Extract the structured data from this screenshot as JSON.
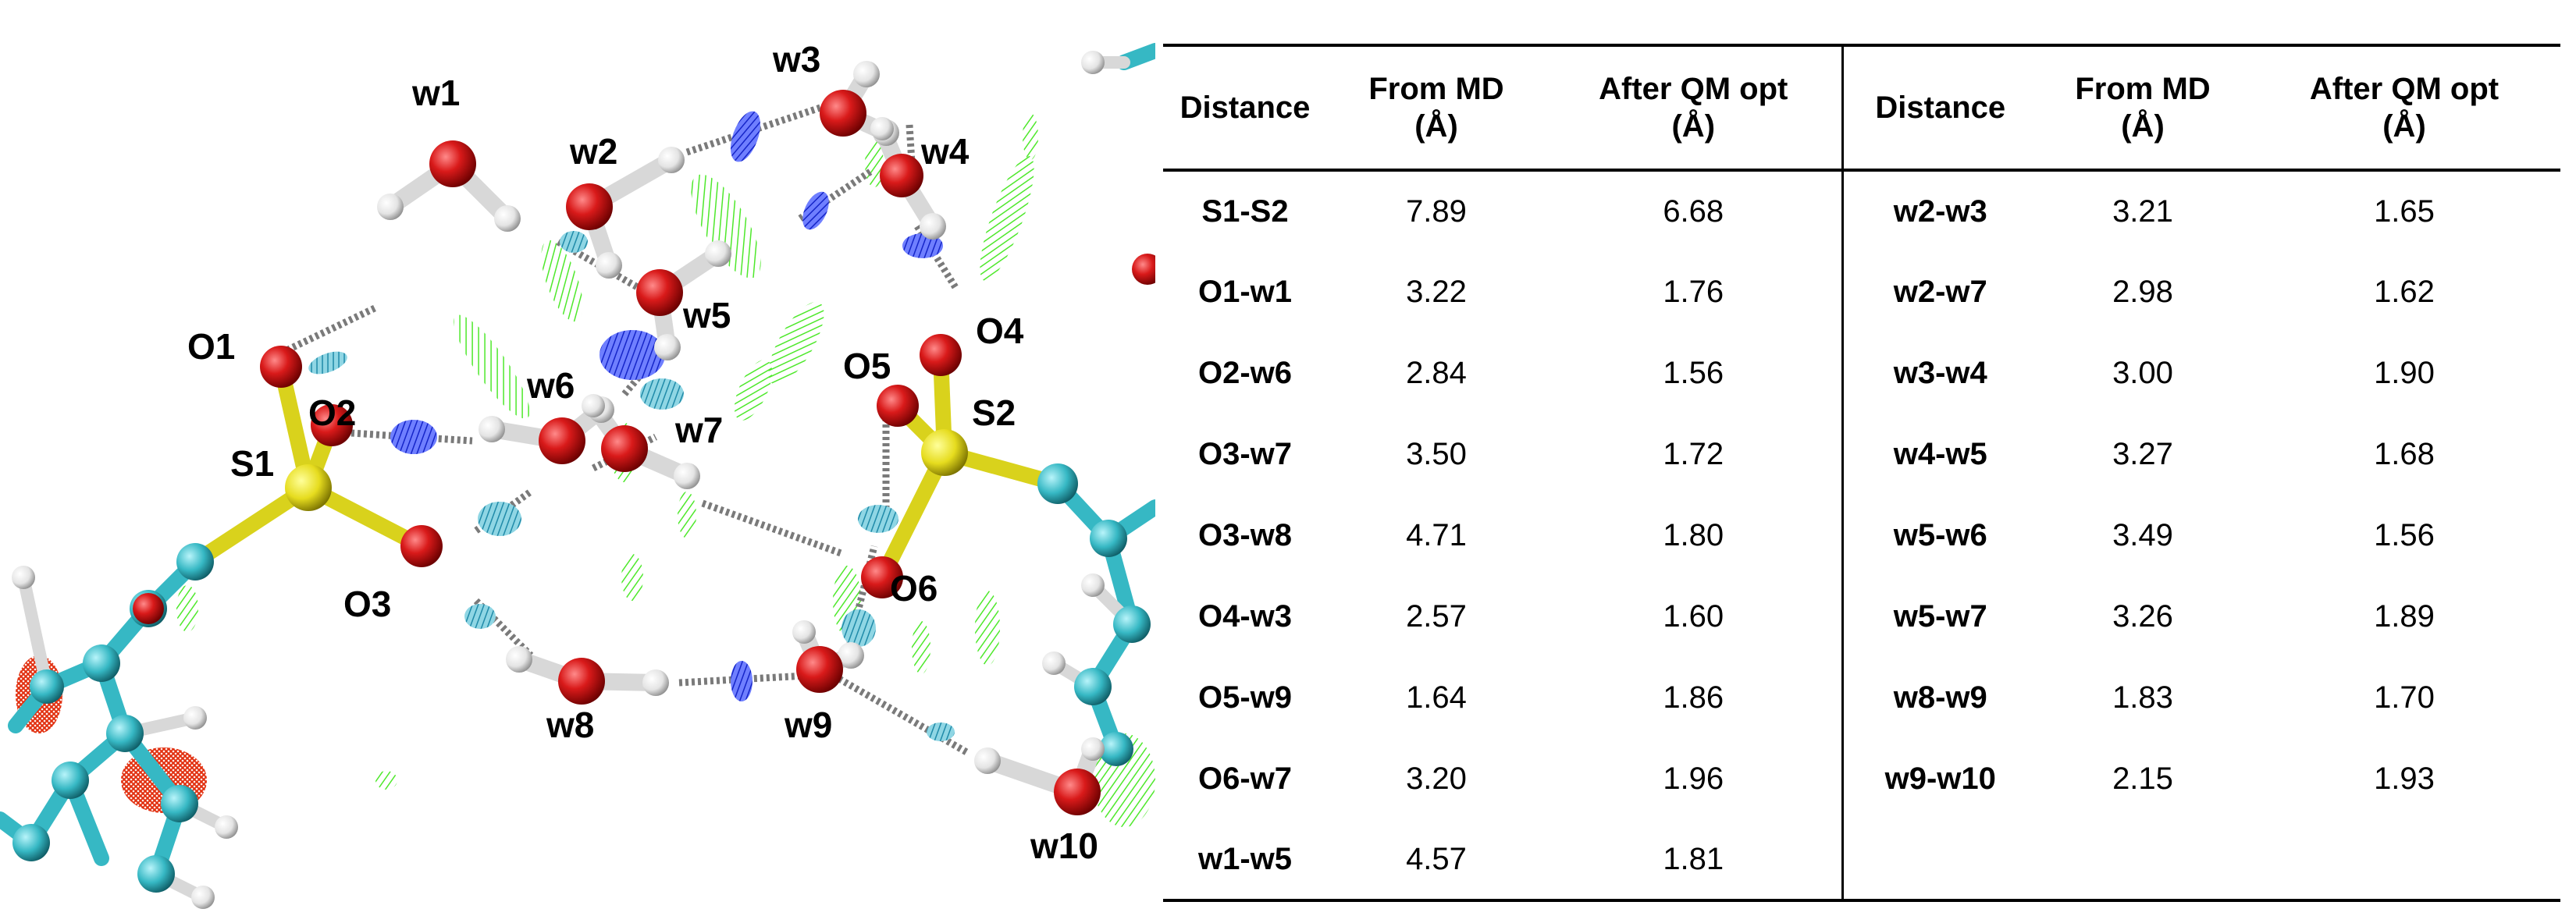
{
  "figure": {
    "labels": {
      "w1": "w1",
      "w2": "w2",
      "w3": "w3",
      "w4": "w4",
      "w5": "w5",
      "w6": "w6",
      "w7": "w7",
      "w8": "w8",
      "w9": "w9",
      "w10": "w10",
      "O1": "O1",
      "O2": "O2",
      "O3": "O3",
      "O4": "O4",
      "O5": "O5",
      "O6": "O6",
      "S1": "S1",
      "S2": "S2"
    },
    "colors": {
      "oxygen": "#d91a1a",
      "hydrogen": "#eeeeee",
      "sulfur": "#e6dc1e",
      "carbon": "#36b8c4",
      "hbond_blue": "#2338e0",
      "hbond_teal": "#2a9bb5",
      "weak_green": "#4ee82b",
      "repulsive_red": "#e23010"
    }
  },
  "table": {
    "headers": {
      "distance": "Distance",
      "from_md_1": "From MD",
      "from_md_2": "(Å)",
      "after_qm_1": "After QM opt",
      "after_qm_2": "(Å)"
    },
    "left_rows": [
      {
        "pair": "S1-S2",
        "md": "7.89",
        "qm": "6.68"
      },
      {
        "pair": "O1-w1",
        "md": "3.22",
        "qm": "1.76"
      },
      {
        "pair": "O2-w6",
        "md": "2.84",
        "qm": "1.56"
      },
      {
        "pair": "O3-w7",
        "md": "3.50",
        "qm": "1.72"
      },
      {
        "pair": "O3-w8",
        "md": "4.71",
        "qm": "1.80"
      },
      {
        "pair": "O4-w3",
        "md": "2.57",
        "qm": "1.60"
      },
      {
        "pair": "O5-w9",
        "md": "1.64",
        "qm": "1.86"
      },
      {
        "pair": "O6-w7",
        "md": "3.20",
        "qm": "1.96"
      },
      {
        "pair": "w1-w5",
        "md": "4.57",
        "qm": "1.81"
      }
    ],
    "right_rows": [
      {
        "pair": "w2-w3",
        "md": "3.21",
        "qm": "1.65"
      },
      {
        "pair": "w2-w7",
        "md": "2.98",
        "qm": "1.62"
      },
      {
        "pair": "w3-w4",
        "md": "3.00",
        "qm": "1.90"
      },
      {
        "pair": "w4-w5",
        "md": "3.27",
        "qm": "1.68"
      },
      {
        "pair": "w5-w6",
        "md": "3.49",
        "qm": "1.56"
      },
      {
        "pair": "w5-w7",
        "md": "3.26",
        "qm": "1.89"
      },
      {
        "pair": "w8-w9",
        "md": "1.83",
        "qm": "1.70"
      },
      {
        "pair": "w9-w10",
        "md": "2.15",
        "qm": "1.93"
      },
      {
        "pair": "",
        "md": "",
        "qm": ""
      }
    ]
  }
}
